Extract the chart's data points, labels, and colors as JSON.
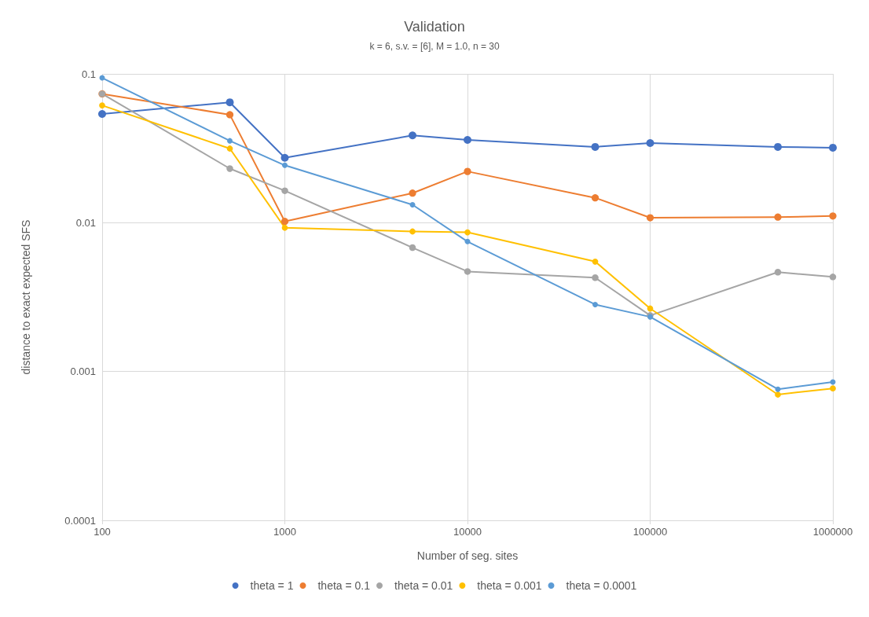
{
  "chart_data": {
    "type": "line",
    "title": "Validation",
    "subtitle": "k = 6, s.v. = [6], M = 1.0, n = 30",
    "xlabel": "Number of seg. sites",
    "ylabel": "distance to exact expected SFS",
    "x": [
      100,
      500,
      1000,
      5000,
      10000,
      50000,
      100000,
      500000,
      1000000
    ],
    "series": [
      {
        "name": "theta = 1",
        "color": "#4472c4",
        "values": [
          0.0538,
          0.0644,
          0.0273,
          0.0386,
          0.036,
          0.0323,
          0.0343,
          0.0323,
          0.0319
        ]
      },
      {
        "name": "theta = 0.1",
        "color": "#ed7d31",
        "values": [
          0.0734,
          0.0532,
          0.0102,
          0.0158,
          0.0221,
          0.0147,
          0.0108,
          0.0109,
          0.0111
        ]
      },
      {
        "name": "theta = 0.01",
        "color": "#a5a5a5",
        "values": [
          0.0734,
          0.0231,
          0.0164,
          0.0068,
          0.0047,
          0.00427,
          0.00238,
          0.00465,
          0.00432
        ]
      },
      {
        "name": "theta = 0.001",
        "color": "#ffc000",
        "values": [
          0.0614,
          0.0315,
          0.00925,
          0.00873,
          0.00862,
          0.00548,
          0.00265,
          0.0007,
          0.00077
        ]
      },
      {
        "name": "theta = 0.0001",
        "color": "#5b9bd5",
        "values": [
          0.094,
          0.0355,
          0.0243,
          0.0132,
          0.00747,
          0.00282,
          0.00233,
          0.00076,
          0.00085
        ]
      }
    ],
    "log": "xy",
    "xlim": [
      100,
      1000000
    ],
    "xticks": [
      100,
      1000,
      10000,
      100000,
      1000000
    ],
    "ylim": [
      0.0001,
      0.1
    ],
    "yticks": [
      0.0001,
      0.001,
      0.01,
      0.1
    ],
    "grid": true,
    "legend": "bottom",
    "marker": "circle",
    "line_style": "solid"
  }
}
